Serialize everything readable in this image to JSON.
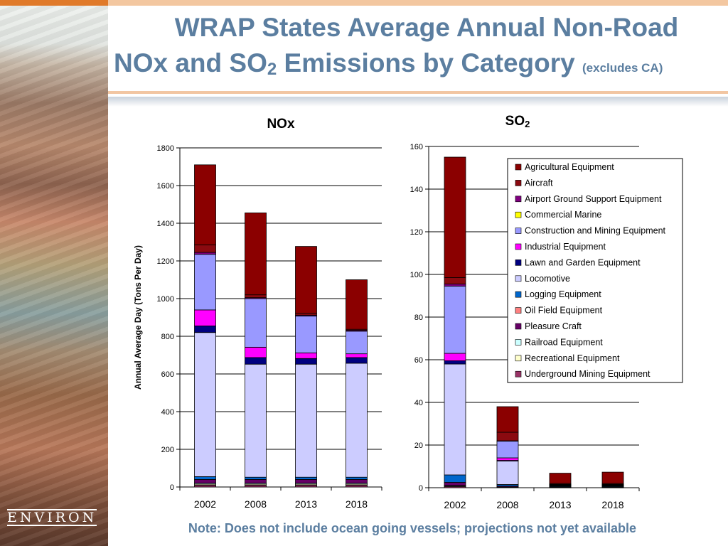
{
  "slide": {
    "title_line1": "WRAP States Average Annual Non-Road",
    "title_line2_a": "NOx and SO",
    "title_line2_sub": "2",
    "title_line2_b": " Emissions by Category",
    "title_note": "(excludes CA)",
    "logo_text": "ENVIRON",
    "footer_note": "Note: Does not include ocean going vessels; projections not yet available"
  },
  "legend": [
    {
      "name": "Agricultural Equipment",
      "color": "#8b0000"
    },
    {
      "name": "Aircraft",
      "color": "#8b0a10"
    },
    {
      "name": "Airport Ground Support Equipment",
      "color": "#800080"
    },
    {
      "name": "Commercial Marine",
      "color": "#ffff00"
    },
    {
      "name": "Construction and Mining Equipment",
      "color": "#9999ff"
    },
    {
      "name": "Industrial Equipment",
      "color": "#ff00ff"
    },
    {
      "name": "Lawn and Garden Equipment",
      "color": "#000080"
    },
    {
      "name": "Locomotive",
      "color": "#ccccff"
    },
    {
      "name": "Logging Equipment",
      "color": "#0066cc"
    },
    {
      "name": "Oil Field Equipment",
      "color": "#ff8080"
    },
    {
      "name": "Pleasure Craft",
      "color": "#660066"
    },
    {
      "name": "Railroad Equipment",
      "color": "#ccffff"
    },
    {
      "name": "Recreational Equipment",
      "color": "#ffffcc"
    },
    {
      "name": "Underground Mining Equipment",
      "color": "#993366"
    }
  ],
  "chart_data": [
    {
      "type": "bar",
      "stacked": true,
      "title": "NOx",
      "title_sub": "",
      "ylabel": "Annual Average Day (Tons Per Day)",
      "ylim": [
        0,
        1800
      ],
      "yticks": [
        0,
        200,
        400,
        600,
        800,
        1000,
        1200,
        1400,
        1600,
        1800
      ],
      "categories": [
        "2002",
        "2008",
        "2013",
        "2018"
      ],
      "series": [
        {
          "name": "Underground Mining Equipment",
          "values": [
            10,
            10,
            10,
            10
          ]
        },
        {
          "name": "Recreational Equipment",
          "values": [
            5,
            5,
            5,
            5
          ]
        },
        {
          "name": "Railroad Equipment",
          "values": [
            5,
            5,
            5,
            5
          ]
        },
        {
          "name": "Pleasure Craft",
          "values": [
            20,
            20,
            20,
            20
          ]
        },
        {
          "name": "Oil Field Equipment",
          "values": [
            0,
            0,
            0,
            0
          ]
        },
        {
          "name": "Logging Equipment",
          "values": [
            15,
            12,
            12,
            12
          ]
        },
        {
          "name": "Locomotive",
          "values": [
            765,
            600,
            600,
            605
          ]
        },
        {
          "name": "Lawn and Garden Equipment",
          "values": [
            35,
            35,
            30,
            30
          ]
        },
        {
          "name": "Industrial Equipment",
          "values": [
            85,
            55,
            30,
            20
          ]
        },
        {
          "name": "Commercial Marine",
          "values": [
            0,
            0,
            0,
            0
          ]
        },
        {
          "name": "Construction and Mining Equipment",
          "values": [
            295,
            258,
            195,
            120
          ]
        },
        {
          "name": "Airport Ground Support Equipment",
          "values": [
            10,
            5,
            5,
            5
          ]
        },
        {
          "name": "Aircraft",
          "values": [
            40,
            15,
            10,
            5
          ]
        },
        {
          "name": "Agricultural Equipment",
          "values": [
            425,
            435,
            355,
            263
          ]
        }
      ]
    },
    {
      "type": "bar",
      "stacked": true,
      "title": "SO",
      "title_sub": "2",
      "ylabel": "",
      "ylim": [
        0,
        160
      ],
      "yticks": [
        0,
        20,
        40,
        60,
        80,
        100,
        120,
        140,
        160
      ],
      "categories": [
        "2002",
        "2008",
        "2013",
        "2018"
      ],
      "series": [
        {
          "name": "Underground Mining Equipment",
          "values": [
            0.5,
            0.2,
            0.1,
            0.1
          ]
        },
        {
          "name": "Recreational Equipment",
          "values": [
            0.3,
            0.1,
            0.1,
            0.1
          ]
        },
        {
          "name": "Railroad Equipment",
          "values": [
            0.2,
            0.1,
            0.1,
            0.1
          ]
        },
        {
          "name": "Pleasure Craft",
          "values": [
            1.5,
            0.4,
            0.2,
            0.2
          ]
        },
        {
          "name": "Oil Field Equipment",
          "values": [
            0,
            0,
            0,
            0
          ]
        },
        {
          "name": "Logging Equipment",
          "values": [
            3.5,
            0.7,
            0.3,
            0.3
          ]
        },
        {
          "name": "Locomotive",
          "values": [
            52,
            11,
            0.2,
            0.2
          ]
        },
        {
          "name": "Lawn and Garden Equipment",
          "values": [
            1.5,
            0.3,
            0.1,
            0.1
          ]
        },
        {
          "name": "Industrial Equipment",
          "values": [
            3.5,
            1.2,
            0.2,
            0.2
          ]
        },
        {
          "name": "Commercial Marine",
          "values": [
            0,
            0,
            0,
            0
          ]
        },
        {
          "name": "Construction and Mining Equipment",
          "values": [
            31.5,
            7.8,
            0.2,
            0.2
          ]
        },
        {
          "name": "Airport Ground Support Equipment",
          "values": [
            1,
            0.2,
            0.1,
            0.1
          ]
        },
        {
          "name": "Aircraft",
          "values": [
            3,
            4,
            0.4,
            0.4
          ]
        },
        {
          "name": "Agricultural Equipment",
          "values": [
            56.5,
            12,
            4.8,
            5.3
          ]
        }
      ]
    }
  ]
}
